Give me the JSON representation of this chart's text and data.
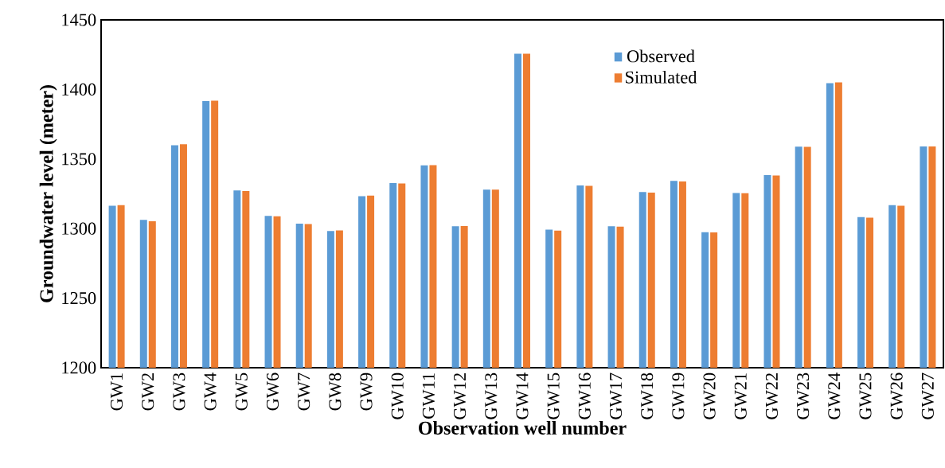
{
  "chart_data": {
    "type": "bar",
    "xlabel": "Observation well number",
    "ylabel": "Groundwater level (meter)",
    "categories": [
      "GW1",
      "GW2",
      "GW3",
      "GW4",
      "GW5",
      "GW6",
      "GW7",
      "GW8",
      "GW9",
      "GW10",
      "GW11",
      "GW12",
      "GW13",
      "GW14",
      "GW15",
      "GW16",
      "GW17",
      "GW18",
      "GW19",
      "GW20",
      "GW21",
      "GW22",
      "GW23",
      "GW24",
      "GW25",
      "GW26",
      "GW27"
    ],
    "series": [
      {
        "name": "Observed",
        "color": "#5b9bd5",
        "values": [
          1316.4,
          1306.2,
          1359.9,
          1391.7,
          1327.4,
          1309.1,
          1303.6,
          1298.3,
          1323.3,
          1332.7,
          1345.4,
          1301.7,
          1328.0,
          1425.7,
          1299.3,
          1331.0,
          1301.7,
          1326.3,
          1334.3,
          1297.4,
          1325.5,
          1338.5,
          1358.9,
          1404.5,
          1308.2,
          1316.8,
          1359.1
        ]
      },
      {
        "name": "Simulated",
        "color": "#ed7d31",
        "values": [
          1316.8,
          1305.2,
          1360.6,
          1391.9,
          1327.0,
          1308.9,
          1303.2,
          1298.7,
          1323.7,
          1332.4,
          1345.6,
          1301.8,
          1328.0,
          1425.7,
          1298.5,
          1330.7,
          1301.4,
          1325.8,
          1333.9,
          1297.3,
          1325.4,
          1338.1,
          1358.7,
          1405.1,
          1307.8,
          1316.4,
          1359.1
        ]
      }
    ],
    "ylim": [
      1200,
      1450
    ],
    "yticks": [
      1200,
      1250,
      1300,
      1350,
      1400,
      1450
    ],
    "grid": false,
    "legend": "top"
  }
}
